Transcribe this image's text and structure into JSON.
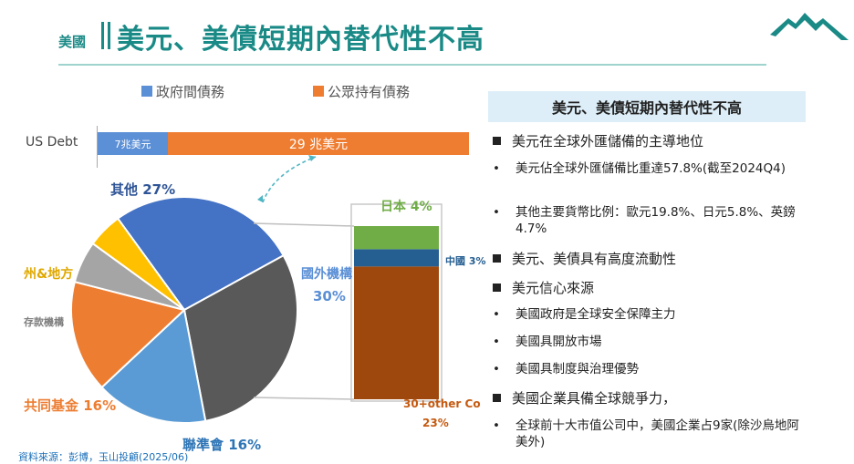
{
  "header": {
    "tag": "美國",
    "title": "美元、美債短期內替代性不高"
  },
  "legend": {
    "government": {
      "label": "政府間債務",
      "color": "#5b8fd6"
    },
    "public": {
      "label": "公眾持有債務",
      "color": "#ef7d31"
    }
  },
  "chart_data": [
    {
      "type": "bar",
      "orientation": "horizontal-stacked",
      "categories": [
        "US Debt"
      ],
      "series": [
        {
          "name": "政府間債務",
          "values": [
            7
          ],
          "label": "7兆美元",
          "color": "#5b8fd6"
        },
        {
          "name": "公眾持有債務",
          "values": [
            29
          ],
          "label": "29 兆美元",
          "color": "#ef7d31"
        }
      ]
    },
    {
      "type": "pie",
      "slices": [
        {
          "label": "其他 27%",
          "value": 27,
          "color": "#4472c4"
        },
        {
          "label": "國外機構",
          "sublabel": "30%",
          "value": 30,
          "color": "#595959"
        },
        {
          "label": "聯準會 16%",
          "value": 16,
          "color": "#5b9bd5"
        },
        {
          "label": "共同基金 16%",
          "value": 16,
          "color": "#ed7d31"
        },
        {
          "label": "存款機構",
          "value": 6,
          "color": "#a5a5a5"
        },
        {
          "label": "州&地方",
          "value": 5,
          "color": "#ffc000"
        }
      ]
    },
    {
      "type": "bar",
      "orientation": "vertical-stacked",
      "title": "國外機構",
      "segments": [
        {
          "label": "30+other Co",
          "sublabel": "23%",
          "value": 23,
          "color": "#9e480e"
        },
        {
          "label": "中國 3%",
          "value": 3,
          "color": "#255e91"
        },
        {
          "label": "日本 4%",
          "value": 4,
          "color": "#70ad47"
        }
      ]
    }
  ],
  "panel": {
    "heading": "美元、美債短期內替代性不高",
    "items": [
      {
        "kind": "main",
        "text": "美元在全球外匯儲備的主導地位"
      },
      {
        "kind": "sub",
        "text": "美元佔全球外匯儲備比重達57.8%(截至2024Q4)"
      },
      {
        "kind": "sub",
        "text": "其他主要貨幣比例：歐元19.8%、日元5.8%、英鎊4.7%"
      },
      {
        "kind": "main",
        "text": "美元、美債具有高度流動性"
      },
      {
        "kind": "main",
        "text": "美元信心來源"
      },
      {
        "kind": "sub",
        "text": "美國政府是全球安全保障主力"
      },
      {
        "kind": "sub",
        "text": "美國具開放市場"
      },
      {
        "kind": "sub",
        "text": "美國具制度與治理優勢"
      },
      {
        "kind": "main",
        "text": "美國企業具備全球競爭力，"
      },
      {
        "kind": "sub",
        "text": "全球前十大市值公司中，美國企業占9家(除沙烏地阿美外)"
      }
    ]
  },
  "source": "資料來源：彭博，玉山投顧(2025/06)",
  "colors": {
    "accent": "#1a8a86",
    "rule": "#9fd3cf"
  }
}
